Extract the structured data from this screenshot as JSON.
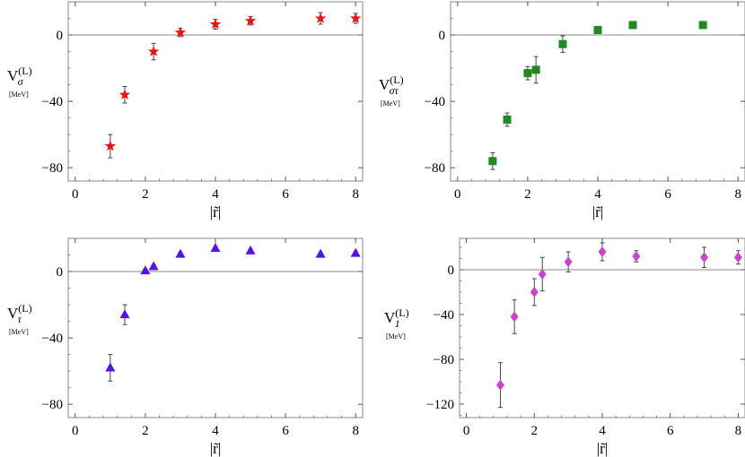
{
  "chart_data": [
    {
      "type": "scatter",
      "ylabel": "V_σ^(L)",
      "ylabel_parts": {
        "main": "V",
        "sub": "σ",
        "sup": "(L)"
      },
      "ylabel_unit": "[MeV]",
      "xlabel": "|r̃|",
      "xlim": [
        -0.2,
        8.2
      ],
      "ylim": [
        -88,
        20
      ],
      "xticks": [
        0,
        2,
        4,
        6,
        8
      ],
      "yticks": [
        0,
        -40,
        -80
      ],
      "marker": "star",
      "color": "#ee1111",
      "series": [
        {
          "x": [
            1.0,
            1.414,
            2.236,
            3.0,
            4.0,
            5.0,
            7.0,
            8.0
          ],
          "y": [
            -67,
            -36,
            -10,
            1.5,
            6.5,
            8.5,
            10,
            10
          ],
          "err": [
            7,
            5,
            5,
            2.5,
            3,
            2.5,
            3.5,
            3
          ]
        }
      ]
    },
    {
      "type": "scatter",
      "ylabel": "V_στ^(L)",
      "ylabel_parts": {
        "main": "V",
        "sub": "στ",
        "sup": "(L)"
      },
      "ylabel_unit": "[MeV]",
      "xlabel": "|r̃|",
      "xlim": [
        -0.2,
        8.2
      ],
      "ylim": [
        -88,
        20
      ],
      "xticks": [
        0,
        2,
        4,
        6,
        8
      ],
      "yticks": [
        0,
        -40,
        -80
      ],
      "marker": "square",
      "color": "#1f8a1f",
      "series": [
        {
          "x": [
            1.0,
            1.414,
            2.0,
            2.236,
            3.0,
            4.0,
            5.0,
            7.0
          ],
          "y": [
            -76,
            -51,
            -23,
            -21,
            -5.5,
            3,
            6,
            6
          ],
          "err": [
            5,
            4,
            4,
            8,
            5,
            1,
            1,
            1
          ]
        }
      ]
    },
    {
      "type": "scatter",
      "ylabel": "V_τ^(L)",
      "ylabel_parts": {
        "main": "V",
        "sub": "τ",
        "sup": "(L)"
      },
      "ylabel_unit": "[MeV]",
      "xlabel": "|r̃|",
      "xlim": [
        -0.2,
        8.2
      ],
      "ylim": [
        -88,
        20
      ],
      "xticks": [
        0,
        2,
        4,
        6,
        8
      ],
      "yticks": [
        0,
        -40,
        -80
      ],
      "marker": "triangle",
      "color": "#5511ee",
      "series": [
        {
          "x": [
            1.0,
            1.414,
            2.0,
            2.236,
            3.0,
            4.0,
            5.0,
            7.0,
            8.0
          ],
          "y": [
            -58,
            -26,
            0.5,
            3,
            10.5,
            14,
            12.5,
            10.5,
            11
          ],
          "err": [
            8,
            6,
            1,
            1,
            1,
            1,
            1,
            1,
            1
          ]
        }
      ]
    },
    {
      "type": "scatter",
      "ylabel": "V_1^(L)",
      "ylabel_parts": {
        "main": "V",
        "sub": "1",
        "sup": "(L)"
      },
      "ylabel_unit": "[MeV]",
      "xlabel": "|r̃|",
      "xlim": [
        -0.2,
        8.2
      ],
      "ylim": [
        -132,
        28
      ],
      "xticks": [
        0,
        2,
        4,
        6,
        8
      ],
      "yticks": [
        0,
        -40,
        -80,
        -120
      ],
      "marker": "diamond",
      "color": "#cc44cc",
      "series": [
        {
          "x": [
            1.0,
            1.414,
            2.0,
            2.236,
            3.0,
            4.0,
            5.0,
            7.0,
            8.0
          ],
          "y": [
            -103,
            -42,
            -20,
            -4,
            7,
            16,
            12,
            11,
            11
          ],
          "err": [
            20,
            15,
            12,
            15,
            9,
            8,
            5,
            9,
            6
          ]
        }
      ]
    }
  ]
}
